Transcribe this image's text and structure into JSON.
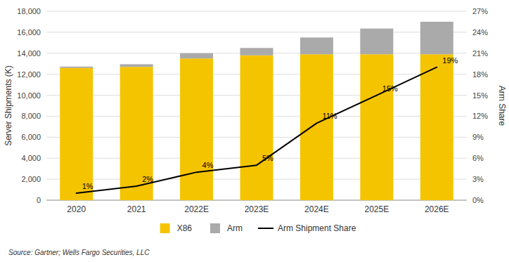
{
  "chart_data": {
    "type": "bar",
    "stacked": true,
    "categories": [
      "2020",
      "2021",
      "2022E",
      "2023E",
      "2024E",
      "2025E",
      "2026E"
    ],
    "series": [
      {
        "name": "X86",
        "color": "#F5C400",
        "values": [
          12600,
          12700,
          13500,
          13800,
          13900,
          13900,
          13900
        ]
      },
      {
        "name": "Arm",
        "color": "#AAAAAA",
        "values": [
          130,
          250,
          500,
          700,
          1600,
          2450,
          3100
        ]
      },
      {
        "name": "Arm Shipment Share",
        "type": "line",
        "axis": "y2",
        "color": "#000000",
        "values": [
          1,
          2,
          4,
          5,
          11,
          15,
          19
        ],
        "data_labels": true,
        "value_labels": [
          "1%",
          "2%",
          "4%",
          "5%",
          "11%",
          "15%",
          "19%"
        ]
      }
    ],
    "ylim": [
      0,
      18000
    ],
    "yticks": [
      0,
      {
        "value": 2000,
        "label": "2,000"
      },
      {
        "value": 4000,
        "label": "4,000"
      },
      {
        "value": 6000,
        "label": "6,000"
      },
      {
        "value": 8000,
        "label": "8,000"
      },
      {
        "value": 10000,
        "label": "10,000"
      },
      {
        "value": 12000,
        "label": "12,000"
      },
      {
        "value": 14000,
        "label": "14,000"
      },
      {
        "value": 16000,
        "label": "16,000"
      },
      {
        "value": 18000,
        "label": "18,000"
      }
    ],
    "y2lim": [
      0,
      27
    ],
    "y2ticks": [
      {
        "value": 0,
        "label": "0%"
      },
      {
        "value": 3,
        "label": "3%"
      },
      {
        "value": 6,
        "label": "6%"
      },
      {
        "value": 9,
        "label": "9%"
      },
      {
        "value": 12,
        "label": "12%"
      },
      {
        "value": 15,
        "label": "15%"
      },
      {
        "value": 18,
        "label": "18%"
      },
      {
        "value": 21,
        "label": "21%"
      },
      {
        "value": 24,
        "label": "24%"
      },
      {
        "value": 27,
        "label": "27%"
      }
    ],
    "ylabel": "Server Shipments (K)",
    "y2label": "Arm Share",
    "grid": true,
    "legend": "bottom",
    "source": "Source: Gartner; Wells Fargo Securities, LLC"
  }
}
